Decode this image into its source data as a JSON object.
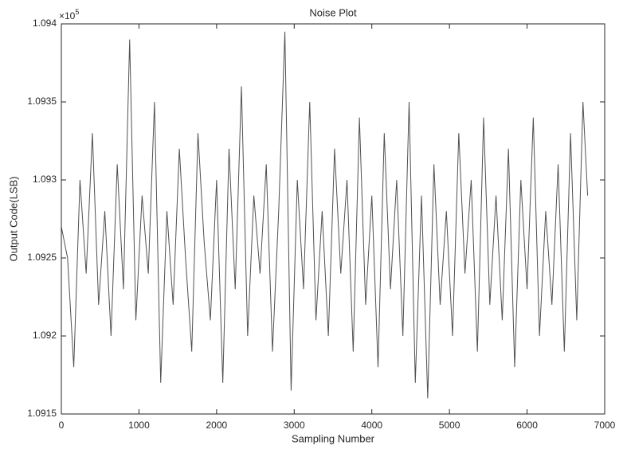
{
  "chart_data": {
    "type": "line",
    "title": "Noise Plot",
    "x_label": "Sampling Number",
    "y_label": "Output Code(LSB)",
    "y_multiplier": "×10",
    "y_multiplier_exponent": "5",
    "x": [
      0,
      80,
      160,
      240,
      320,
      400,
      480,
      560,
      640,
      720,
      800,
      880,
      960,
      1040,
      1120,
      1200,
      1280,
      1360,
      1440,
      1520,
      1600,
      1680,
      1760,
      1840,
      1920,
      2000,
      2080,
      2160,
      2240,
      2320,
      2400,
      2480,
      2560,
      2640,
      2720,
      2800,
      2880,
      2960,
      3040,
      3120,
      3200,
      3280,
      3360,
      3440,
      3520,
      3600,
      3680,
      3760,
      3840,
      3920,
      4000,
      4080,
      4160,
      4240,
      4320,
      4400,
      4480,
      4560,
      4640,
      4720,
      4800,
      4880,
      4960,
      5040,
      5120,
      5200,
      5280,
      5360,
      5440,
      5520,
      5600,
      5680,
      5760,
      5840,
      5920,
      6000,
      6080,
      6160,
      6240,
      6320,
      6400,
      6480,
      6560,
      6640,
      6720,
      6780
    ],
    "series": [
      {
        "color": "#505050",
        "values": [
          1.0927,
          1.0925,
          1.0918,
          1.093,
          1.0924,
          1.0933,
          1.0922,
          1.0928,
          1.092,
          1.0931,
          1.0923,
          1.0939,
          1.0921,
          1.0929,
          1.0924,
          1.0935,
          1.0917,
          1.0928,
          1.0922,
          1.0932,
          1.0925,
          1.0919,
          1.0933,
          1.0926,
          1.0921,
          1.093,
          1.0917,
          1.0932,
          1.0923,
          1.0936,
          1.092,
          1.0929,
          1.0924,
          1.0931,
          1.0919,
          1.0928,
          1.09395,
          1.09165,
          1.093,
          1.0923,
          1.0935,
          1.0921,
          1.0928,
          1.092,
          1.0932,
          1.0924,
          1.093,
          1.0919,
          1.0934,
          1.0922,
          1.0929,
          1.0918,
          1.0933,
          1.0923,
          1.093,
          1.092,
          1.0935,
          1.0917,
          1.0929,
          1.0916,
          1.0931,
          1.0922,
          1.0928,
          1.092,
          1.0933,
          1.0924,
          1.093,
          1.0919,
          1.0934,
          1.0922,
          1.0929,
          1.0921,
          1.0932,
          1.0918,
          1.093,
          1.0923,
          1.0934,
          1.092,
          1.0928,
          1.0922,
          1.0931,
          1.0919,
          1.0933,
          1.0921,
          1.0935,
          1.0929
        ]
      }
    ],
    "xlim": [
      0,
      7000
    ],
    "xticks": [
      0,
      1000,
      2000,
      3000,
      4000,
      5000,
      6000,
      7000
    ],
    "ylim": [
      1.0915,
      1.094
    ],
    "yticks": [
      1.0915,
      1.092,
      1.0925,
      1.093,
      1.0935,
      1.094
    ],
    "grid": false
  }
}
